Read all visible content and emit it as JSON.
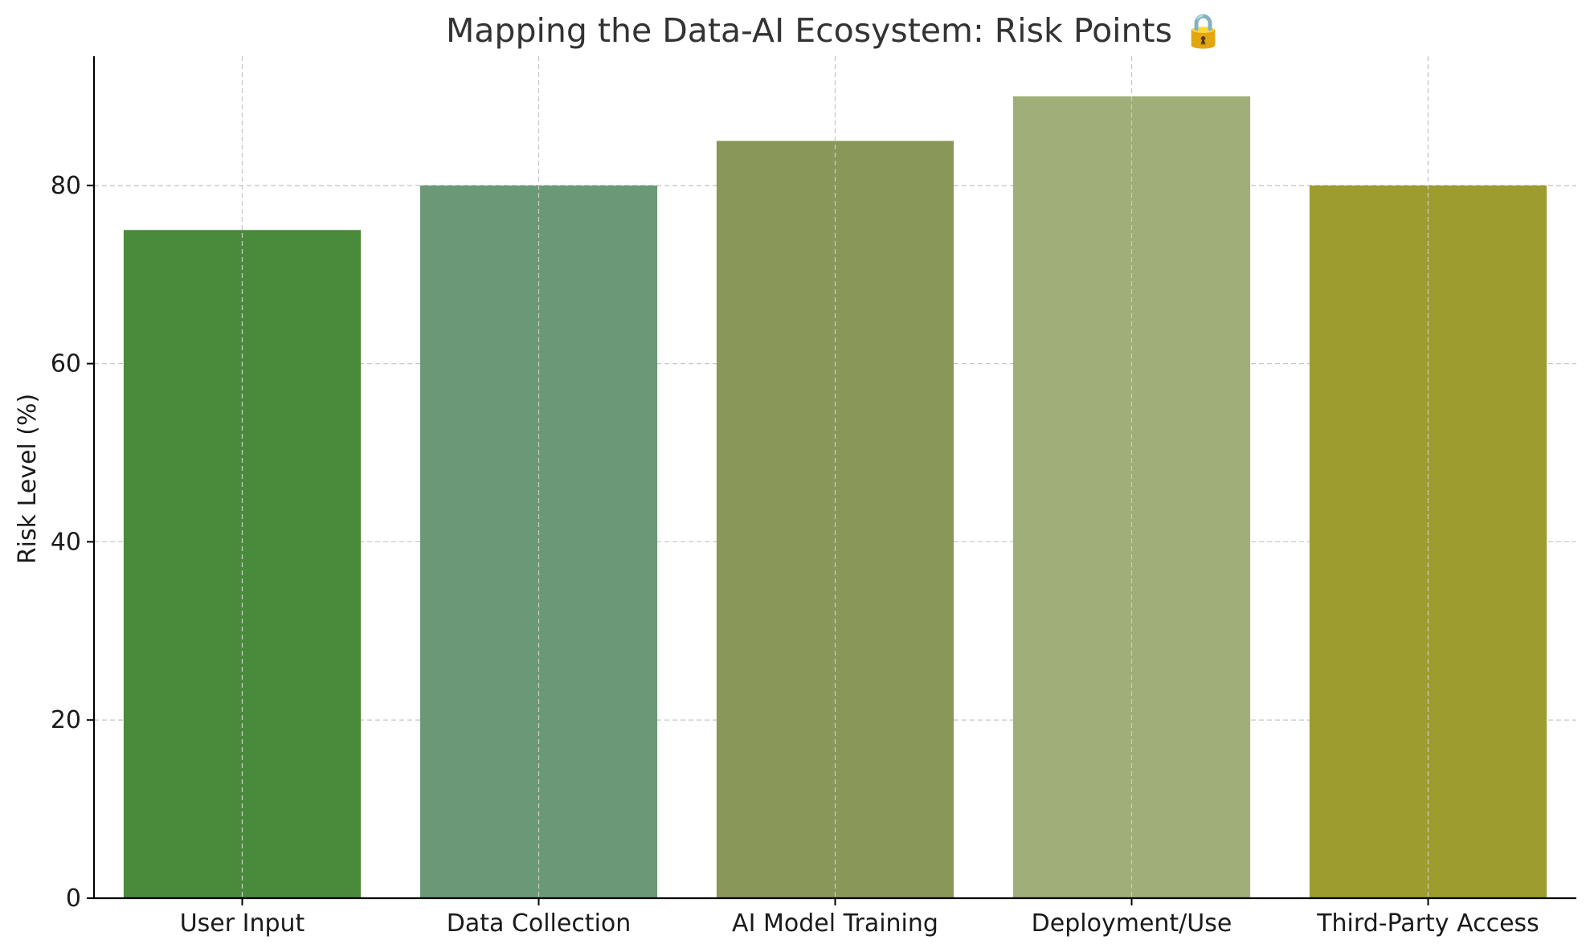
{
  "chart_data": {
    "type": "bar",
    "title": "Mapping the Data-AI Ecosystem: Risk Points 🔒",
    "xlabel": "",
    "ylabel": "Risk Level (%)",
    "categories": [
      "User Input",
      "Data Collection",
      "AI Model Training",
      "Deployment/Use",
      "Third-Party Access"
    ],
    "values": [
      75,
      80,
      85,
      90,
      80
    ],
    "colors": [
      "#4a8a3b",
      "#6b9977",
      "#899859",
      "#a0af7a",
      "#9d9c2e"
    ],
    "ylim": [
      0,
      94.5
    ],
    "yticks": [
      0,
      20,
      40,
      60,
      80
    ],
    "grid": true,
    "legend": "none"
  }
}
